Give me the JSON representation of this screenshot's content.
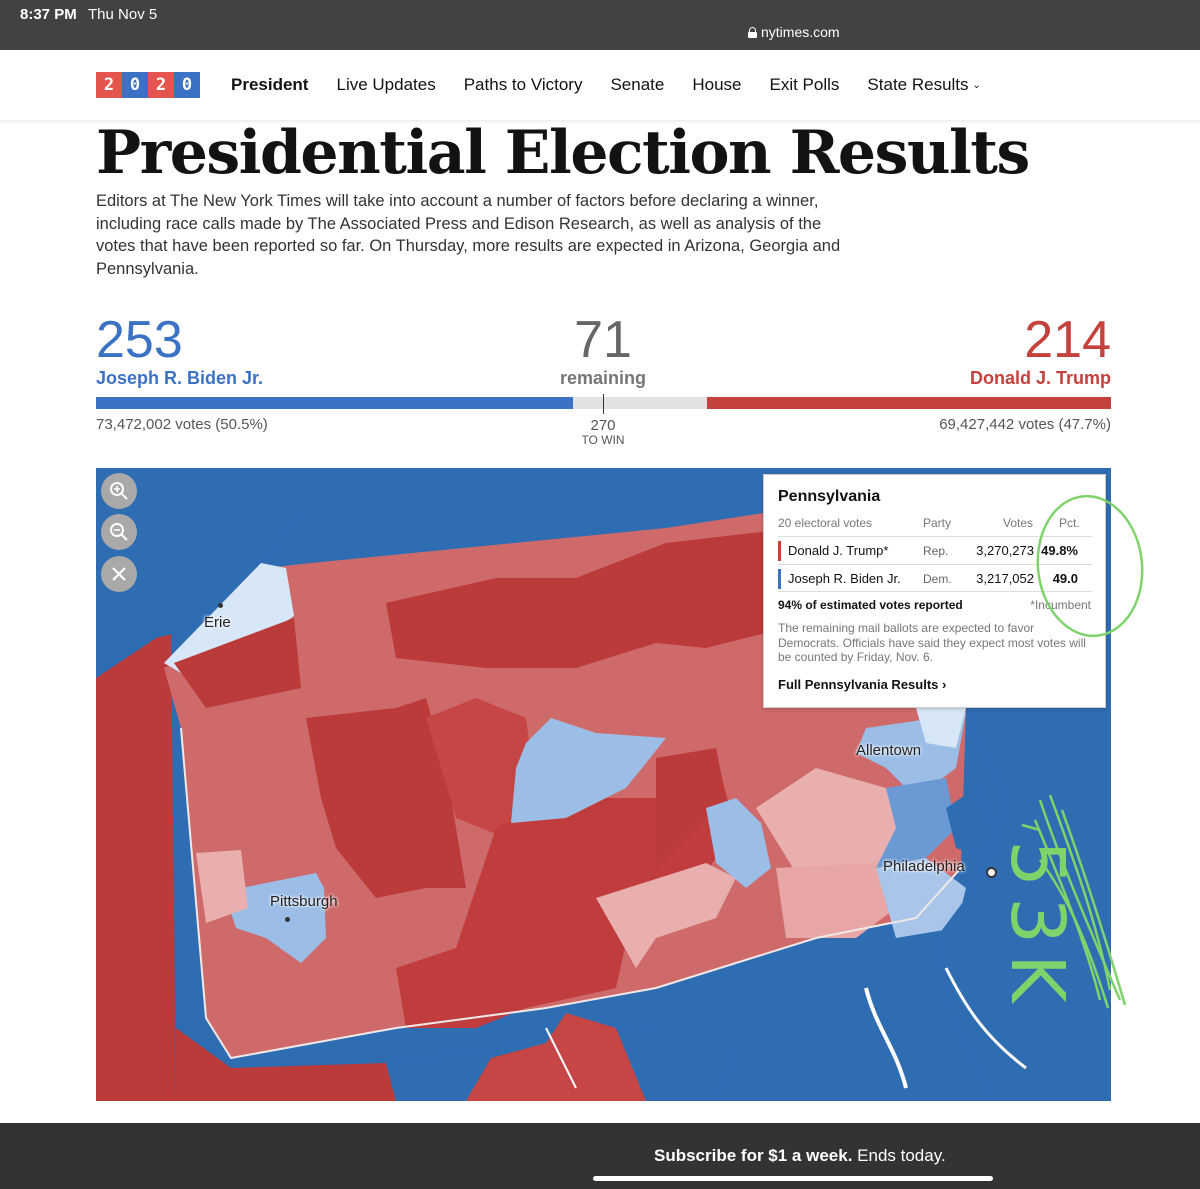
{
  "status_bar": {
    "time": "8:37 PM",
    "date": "Thu Nov 5",
    "url": "nytimes.com"
  },
  "nav": {
    "logo_digits": [
      "2",
      "0",
      "2",
      "0"
    ],
    "links": [
      "President",
      "Live Updates",
      "Paths to Victory",
      "Senate",
      "House",
      "Exit Polls",
      "State Results"
    ]
  },
  "headline": "Presidential Election Results",
  "intro": "Editors at The New York Times will take into account a number of factors before declaring a winner, including race calls made by The Associated Press and Edison Research, as well as analysis of the votes that have been reported so far. On Thursday, more results are expected in Arizona, Georgia and Pennsylvania.",
  "tally": {
    "biden": {
      "electoral": "253",
      "name": "Joseph R. Biden Jr.",
      "votes": "73,472,002 votes (50.5%)",
      "color": "#3c72c4"
    },
    "remaining": {
      "count": "71",
      "label": "remaining"
    },
    "trump": {
      "electoral": "214",
      "name": "Donald J. Trump",
      "votes": "69,427,442 votes (47.7%)",
      "color": "#c4413c"
    },
    "to_win": {
      "number": "270",
      "label": "TO WIN"
    },
    "total_electoral": 538
  },
  "map_labels": {
    "erie": "Erie",
    "pittsburgh": "Pittsburgh",
    "allentown": "Allentown",
    "philadelphia": "Philadelphia"
  },
  "tooltip": {
    "state": "Pennsylvania",
    "electoral_votes": "20 electoral votes",
    "headers": {
      "party": "Party",
      "votes": "Votes",
      "pct": "Pct."
    },
    "rows": [
      {
        "name": "Donald J. Trump*",
        "party": "Rep.",
        "votes": "3,270,273",
        "pct": "49.8%",
        "color": "#c4413c"
      },
      {
        "name": "Joseph R. Biden Jr.",
        "party": "Dem.",
        "votes": "3,217,052",
        "pct": "49.0",
        "color": "#3c72c4"
      }
    ],
    "reported": "94% of estimated votes reported",
    "incumbent": "*Incumbent",
    "note": "The remaining mail ballots are expected to favor Democrats. Officials have said they expect most votes will be counted by Friday, Nov. 6.",
    "link": "Full Pennsylvania Results ›"
  },
  "annotation": {
    "text": "53K",
    "color": "#7fd36b"
  },
  "banner": {
    "bold": "Subscribe for $1 a week.",
    "rest": " Ends today."
  }
}
